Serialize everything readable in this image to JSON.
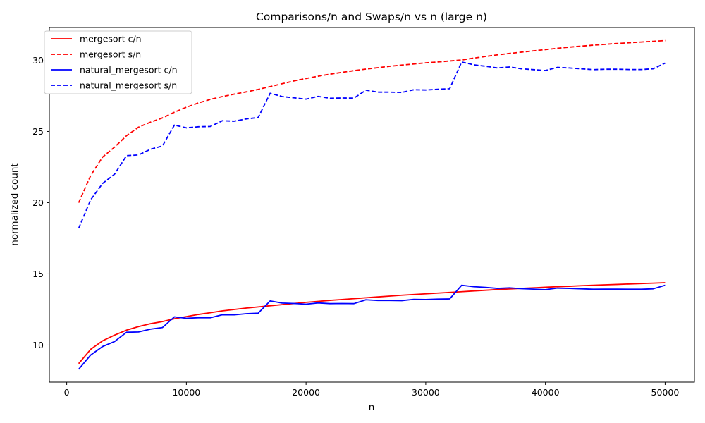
{
  "chart_data": {
    "type": "line",
    "title": "Comparisons/n and Swaps/n vs n (large n)",
    "xlabel": "n",
    "ylabel": "normalized count",
    "xlim": [
      -1450,
      52450
    ],
    "ylim": [
      7.4,
      32.3
    ],
    "xticks": [
      0,
      10000,
      20000,
      30000,
      40000,
      50000
    ],
    "xtick_labels": [
      "0",
      "10000",
      "20000",
      "30000",
      "40000",
      "50000"
    ],
    "yticks": [
      10,
      15,
      20,
      25,
      30
    ],
    "ytick_labels": [
      "10",
      "15",
      "20",
      "25",
      "30"
    ],
    "grid": false,
    "legend_position": "top-left",
    "x": [
      1000,
      2000,
      3000,
      4000,
      5000,
      6000,
      7000,
      8000,
      9000,
      10000,
      11000,
      12000,
      13000,
      14000,
      15000,
      16000,
      17000,
      18000,
      19000,
      20000,
      21000,
      22000,
      23000,
      24000,
      25000,
      26000,
      27000,
      28000,
      29000,
      30000,
      31000,
      32000,
      33000,
      34000,
      35000,
      36000,
      37000,
      38000,
      39000,
      40000,
      41000,
      42000,
      43000,
      44000,
      45000,
      46000,
      47000,
      48000,
      49000,
      50000
    ],
    "series": [
      {
        "name": "mergesort c/n",
        "color": "#ff0000",
        "dash": "solid",
        "values": [
          8.7,
          9.7,
          10.3,
          10.7,
          11.05,
          11.3,
          11.5,
          11.65,
          11.85,
          12.0,
          12.15,
          12.27,
          12.4,
          12.5,
          12.6,
          12.68,
          12.76,
          12.84,
          12.92,
          13.0,
          13.07,
          13.14,
          13.2,
          13.26,
          13.32,
          13.38,
          13.44,
          13.5,
          13.55,
          13.6,
          13.65,
          13.7,
          13.75,
          13.8,
          13.85,
          13.9,
          13.94,
          13.98,
          14.02,
          14.06,
          14.1,
          14.13,
          14.17,
          14.2,
          14.23,
          14.26,
          14.29,
          14.32,
          14.35,
          14.38
        ]
      },
      {
        "name": "mergesort s/n",
        "color": "#ff0000",
        "dash": "dashed",
        "values": [
          20.0,
          21.9,
          23.2,
          23.9,
          24.7,
          25.3,
          25.65,
          25.95,
          26.35,
          26.7,
          27.0,
          27.25,
          27.45,
          27.62,
          27.78,
          27.95,
          28.15,
          28.35,
          28.55,
          28.72,
          28.88,
          29.02,
          29.15,
          29.27,
          29.38,
          29.48,
          29.58,
          29.66,
          29.74,
          29.82,
          29.88,
          29.95,
          30.02,
          30.15,
          30.27,
          30.38,
          30.48,
          30.57,
          30.66,
          30.75,
          30.84,
          30.92,
          30.99,
          31.06,
          31.12,
          31.18,
          31.23,
          31.28,
          31.33,
          31.38
        ]
      },
      {
        "name": "natural_mergesort c/n",
        "color": "#0000ff",
        "dash": "solid",
        "values": [
          8.3,
          9.3,
          9.9,
          10.25,
          10.9,
          10.92,
          11.12,
          11.23,
          11.98,
          11.88,
          11.92,
          11.92,
          12.13,
          12.12,
          12.2,
          12.24,
          13.1,
          12.95,
          12.92,
          12.87,
          12.96,
          12.91,
          12.92,
          12.91,
          13.18,
          13.13,
          13.13,
          13.12,
          13.21,
          13.2,
          13.23,
          13.24,
          14.2,
          14.1,
          14.05,
          13.98,
          14.02,
          13.96,
          13.93,
          13.89,
          14.0,
          13.98,
          13.95,
          13.92,
          13.93,
          13.93,
          13.92,
          13.92,
          13.95,
          14.2
        ]
      },
      {
        "name": "natural_mergesort s/n",
        "color": "#0000ff",
        "dash": "dashed",
        "values": [
          18.2,
          20.2,
          21.35,
          22.0,
          23.3,
          23.35,
          23.75,
          23.98,
          25.45,
          25.25,
          25.33,
          25.35,
          25.75,
          25.72,
          25.88,
          25.98,
          27.68,
          27.45,
          27.36,
          27.27,
          27.46,
          27.33,
          27.35,
          27.34,
          27.9,
          27.76,
          27.76,
          27.74,
          27.93,
          27.91,
          27.96,
          28.0,
          29.88,
          29.68,
          29.58,
          29.46,
          29.53,
          29.4,
          29.34,
          29.28,
          29.5,
          29.46,
          29.4,
          29.34,
          29.37,
          29.37,
          29.35,
          29.35,
          29.4,
          29.8
        ]
      }
    ]
  }
}
